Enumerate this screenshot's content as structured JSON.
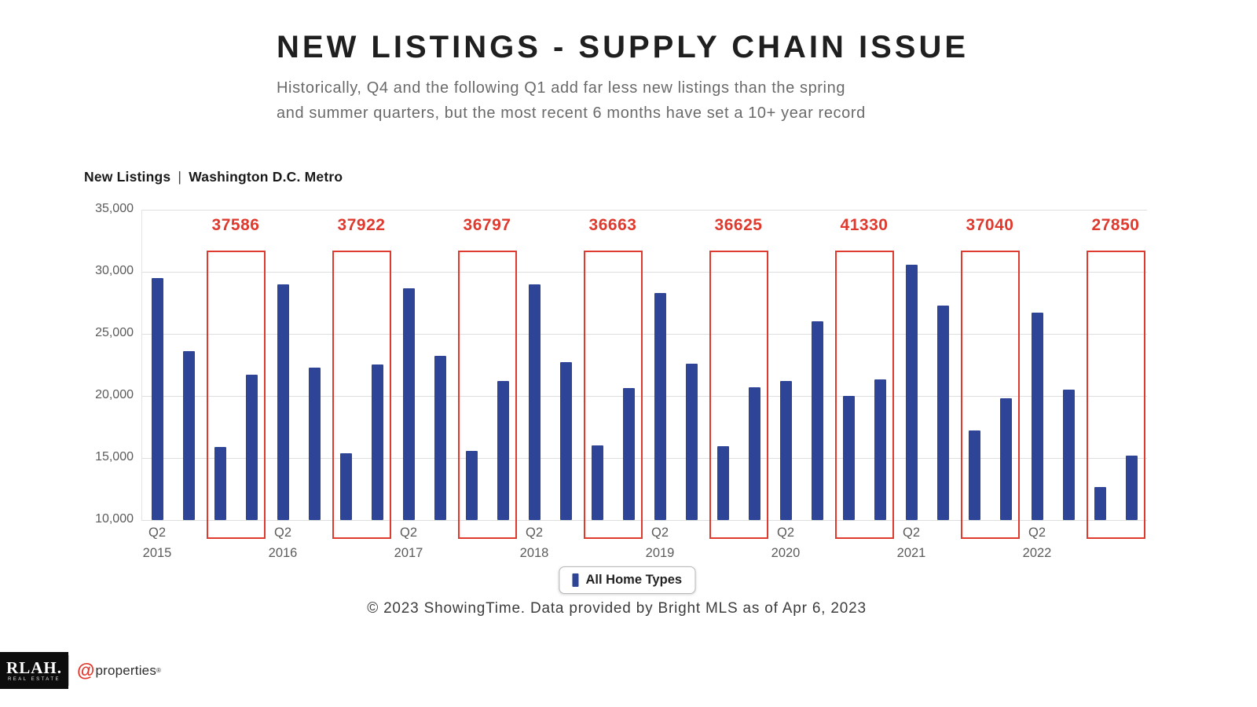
{
  "header": {
    "title": "NEW LISTINGS - SUPPLY CHAIN ISSUE",
    "subtitle_line1": "Historically, Q4 and the following Q1 add far less new listings than the spring",
    "subtitle_line2": "and summer quarters, but the most recent 6 months have set a 10+ year record"
  },
  "chart": {
    "title_main": "New Listings",
    "title_sep": "|",
    "title_region": "Washington D.C. Metro"
  },
  "chart_data": {
    "type": "bar",
    "title": "New Listings | Washington D.C. Metro",
    "xlabel": "",
    "ylabel": "",
    "ylim": [
      10000,
      35000
    ],
    "grid": true,
    "legend_position": "bottom",
    "bar_color": "#2e4496",
    "highlight_color": "#e0392e",
    "gridline_color": "#dedede",
    "series_name": "All Home Types",
    "x": [
      "Q2 2015",
      "Q3 2015",
      "Q4 2015",
      "Q1 2016",
      "Q2 2016",
      "Q3 2016",
      "Q4 2016",
      "Q1 2017",
      "Q2 2017",
      "Q3 2017",
      "Q4 2017",
      "Q1 2018",
      "Q2 2018",
      "Q3 2018",
      "Q4 2018",
      "Q1 2019",
      "Q2 2019",
      "Q3 2019",
      "Q4 2019",
      "Q1 2020",
      "Q2 2020",
      "Q3 2020",
      "Q4 2020",
      "Q1 2021",
      "Q2 2021",
      "Q3 2021",
      "Q4 2021",
      "Q1 2022",
      "Q2 2022",
      "Q3 2022",
      "Q4 2022",
      "Q1 2023"
    ],
    "values": [
      29500,
      23600,
      15900,
      21686,
      29000,
      22300,
      15400,
      22522,
      28700,
      23200,
      15600,
      21197,
      29000,
      22700,
      16000,
      20663,
      28300,
      22600,
      15925,
      20700,
      21200,
      26000,
      20030,
      21300,
      30600,
      27300,
      17240,
      19800,
      26700,
      20500,
      12650,
      15200
    ],
    "yticks": [
      {
        "value": 35000,
        "label": "35,000"
      },
      {
        "value": 30000,
        "label": "30,000"
      },
      {
        "value": 25000,
        "label": "25,000"
      },
      {
        "value": 20000,
        "label": "20,000"
      },
      {
        "value": 15000,
        "label": "15,000"
      },
      {
        "value": 10000,
        "label": "10,000"
      }
    ],
    "x_ticks": [
      {
        "index": 0,
        "quarter": "Q2",
        "year": "2015"
      },
      {
        "index": 4,
        "quarter": "Q2",
        "year": "2016"
      },
      {
        "index": 8,
        "quarter": "Q2",
        "year": "2017"
      },
      {
        "index": 12,
        "quarter": "Q2",
        "year": "2018"
      },
      {
        "index": 16,
        "quarter": "Q2",
        "year": "2019"
      },
      {
        "index": 20,
        "quarter": "Q2",
        "year": "2020"
      },
      {
        "index": 24,
        "quarter": "Q2",
        "year": "2021"
      },
      {
        "index": 28,
        "quarter": "Q2",
        "year": "2022"
      }
    ],
    "highlights": [
      {
        "start_index": 2,
        "label": "37586"
      },
      {
        "start_index": 6,
        "label": "37922"
      },
      {
        "start_index": 10,
        "label": "36797"
      },
      {
        "start_index": 14,
        "label": "36663"
      },
      {
        "start_index": 18,
        "label": "36625"
      },
      {
        "start_index": 22,
        "label": "41330"
      },
      {
        "start_index": 26,
        "label": "37040"
      },
      {
        "start_index": 30,
        "label": "27850"
      }
    ]
  },
  "legend": {
    "label": "All Home Types"
  },
  "footer": {
    "credit": "© 2023 ShowingTime. Data provided by Bright MLS as of Apr 6, 2023"
  },
  "logos": {
    "rlah_name": "RLAH.",
    "rlah_tagline": "REAL ESTATE",
    "atproperties_symbol": "@",
    "atproperties_name": "properties",
    "atproperties_reg": "®"
  }
}
